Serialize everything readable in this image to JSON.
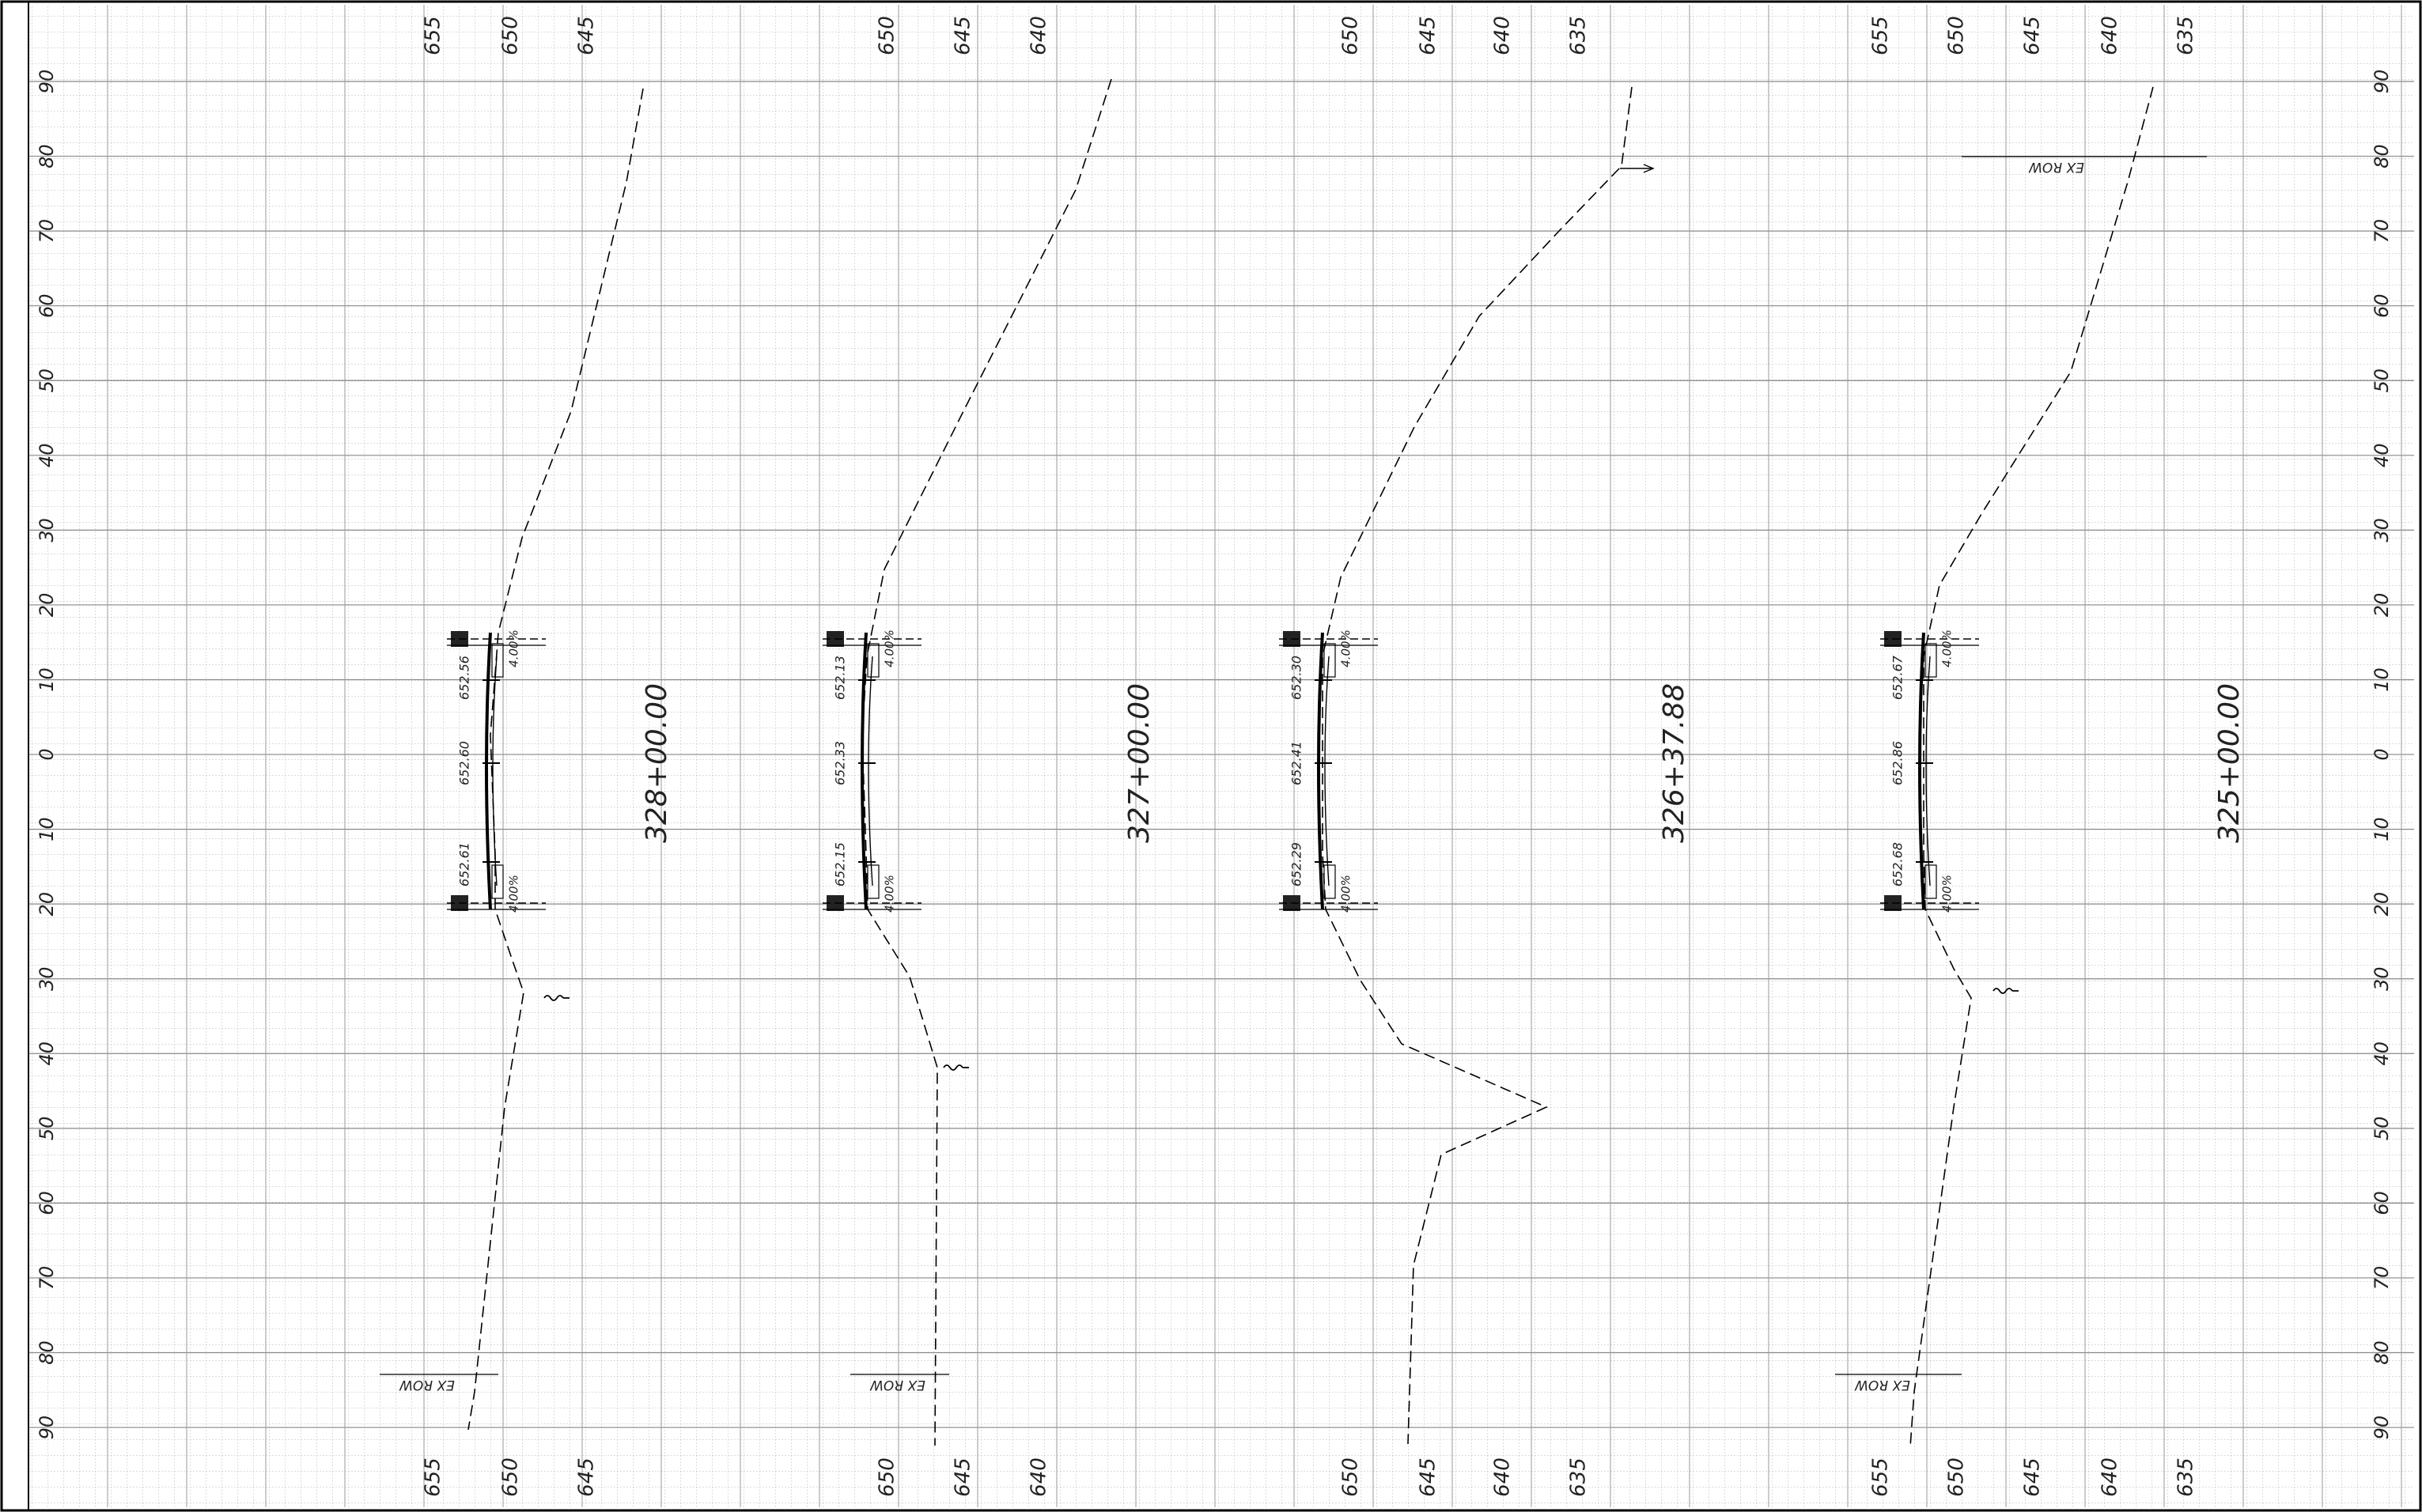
{
  "sheet": {
    "offsets": [
      "90",
      "80",
      "70",
      "60",
      "50",
      "40",
      "30",
      "20",
      "10",
      "0",
      "10",
      "20",
      "30",
      "40",
      "50",
      "60",
      "70",
      "80",
      "90"
    ],
    "row_label": "EX ROW"
  },
  "sections": [
    {
      "station": "328+00.00",
      "elev_top": [
        "655",
        "650",
        "645"
      ],
      "elev_bottom": [
        "655",
        "650",
        "645"
      ],
      "grades": [
        "652.56",
        "652.60",
        "652.61"
      ],
      "slopes": [
        "4.00%",
        "4.00%"
      ],
      "has_top_row": false,
      "has_bottom_row": true
    },
    {
      "station": "327+00.00",
      "elev_top": [
        "650",
        "645",
        "640"
      ],
      "elev_bottom": [
        "650",
        "645",
        "640"
      ],
      "grades": [
        "652.13",
        "652.33",
        "652.15"
      ],
      "slopes": [
        "4.00%",
        "4.00%"
      ],
      "has_top_row": false,
      "has_bottom_row": true
    },
    {
      "station": "326+37.88",
      "elev_top": [
        "650",
        "645",
        "640",
        "635"
      ],
      "elev_bottom": [
        "650",
        "645",
        "640",
        "635"
      ],
      "grades": [
        "652.30",
        "652.41",
        "652.29"
      ],
      "slopes": [
        "4.00%",
        "4.00%"
      ],
      "has_top_row": false,
      "has_bottom_row": false
    },
    {
      "station": "325+00.00",
      "elev_top": [
        "655",
        "650",
        "645",
        "640",
        "635"
      ],
      "elev_bottom": [
        "655",
        "650",
        "645",
        "640",
        "635"
      ],
      "grades": [
        "652.67",
        "652.86",
        "652.68"
      ],
      "slopes": [
        "4.00%",
        "4.00%"
      ],
      "has_top_row": true,
      "has_bottom_row": true
    }
  ]
}
